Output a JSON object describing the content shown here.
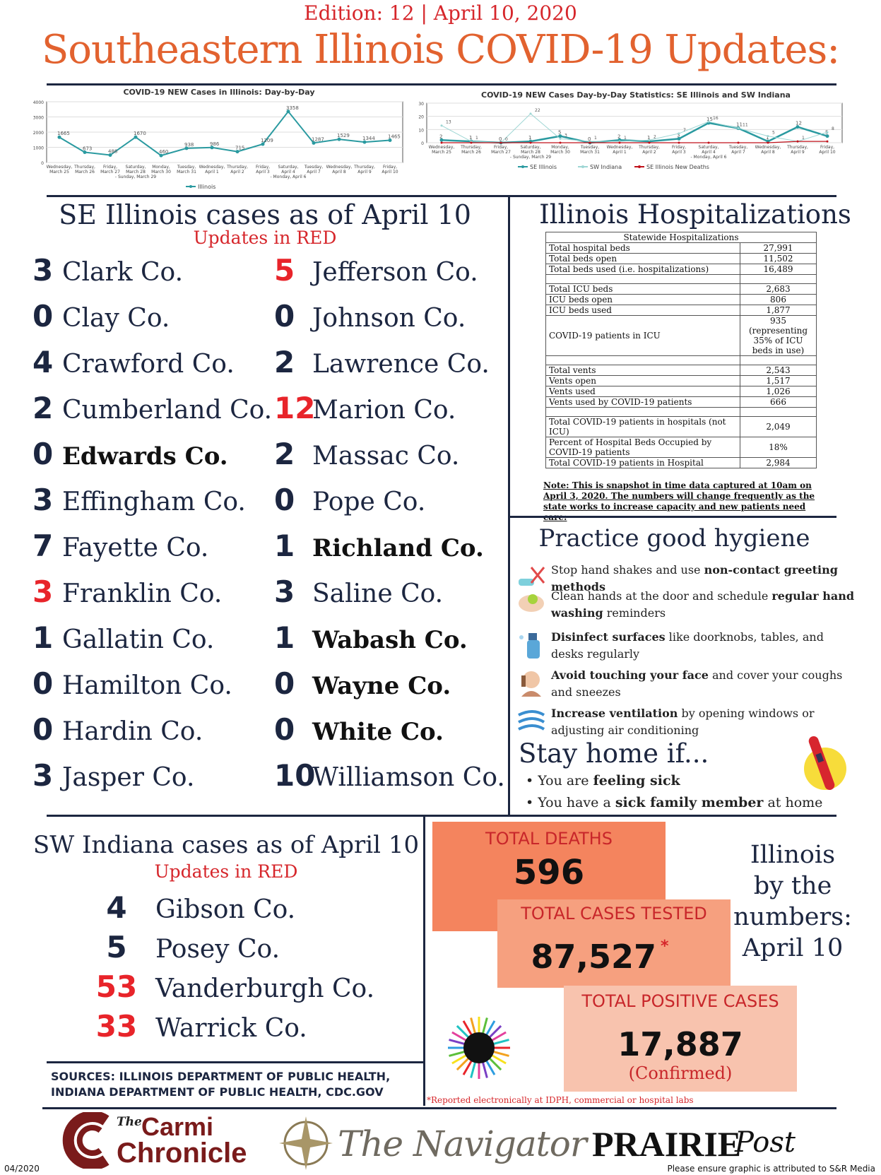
{
  "edition": "Edition: 12 | April 10, 2020",
  "title": "Southeastern Illinois COVID-19 Updates:",
  "chart_data": [
    {
      "type": "line",
      "title": "COVID-19 NEW Cases in Illinois:  Day-by-Day",
      "categories": [
        "Wednesday, March 25",
        "Thursday, March 26",
        "Friday, March 27",
        "Saturday, March 28 - Sunday, March 29",
        "Monday, March 30",
        "Tuesday, March 31",
        "Wednesday, April 1",
        "Thursday, April 2",
        "Friday, April 3",
        "Saturday, April 4 - Monday, April 6",
        "Tuesday, April 7",
        "Wednesday, April 8",
        "Thursday, April 9",
        "Friday, April 10"
      ],
      "series": [
        {
          "name": "Illinois",
          "values": [
            1665,
            673,
            488,
            1670,
            460,
            938,
            986,
            715,
            1209,
            3358,
            1287,
            1529,
            1344,
            1465
          ]
        }
      ],
      "ylim": [
        0,
        4000
      ],
      "yticks": [
        0,
        1000,
        2000,
        3000,
        4000
      ],
      "legend": "bottom"
    },
    {
      "type": "line",
      "title": "COVID-19 NEW Cases Day-by-Day Statistics: SE Illinois and SW Indiana",
      "categories": [
        "Wednesday, March 25",
        "Thursday, March 26",
        "Friday, March 27",
        "Saturday, March 28 - Sunday, March 29",
        "Monday, March 30",
        "Tuesday, March 31",
        "Wednesday, April 1",
        "Thursday, April 2",
        "Friday, April 3",
        "Saturday, April 4 - Monday, April 6",
        "Tuesday, April 7",
        "Wednesday, April 8",
        "Thursday, April 9",
        "Friday, April 10"
      ],
      "series": [
        {
          "name": "SE Illinois",
          "values": [
            2,
            1,
            0,
            1,
            5,
            0,
            2,
            1,
            3,
            15,
            11,
            1,
            12,
            5
          ]
        },
        {
          "name": "SW Indiana",
          "values": [
            13,
            1,
            0,
            22,
            3,
            1,
            1,
            2,
            7,
            16,
            11,
            5,
            1,
            8
          ]
        },
        {
          "name": "SE Illinois New Deaths",
          "values": [
            0,
            0,
            0,
            0,
            0,
            0,
            0,
            0,
            0,
            0,
            0,
            0,
            1,
            1
          ]
        }
      ],
      "ylim": [
        0,
        30
      ],
      "yticks": [
        0,
        10,
        20,
        30
      ],
      "legend": "bottom"
    }
  ],
  "se": {
    "title": "SE Illinois cases as of April 10",
    "updates": "Updates in RED",
    "left": [
      {
        "n": "3",
        "name": "Clark Co.",
        "red": false,
        "bold": false
      },
      {
        "n": "0",
        "name": "Clay Co.",
        "red": false,
        "bold": false
      },
      {
        "n": "4",
        "name": "Crawford Co.",
        "red": false,
        "bold": false
      },
      {
        "n": "2",
        "name": "Cumberland Co.",
        "red": false,
        "bold": false
      },
      {
        "n": "0",
        "name": "Edwards Co.",
        "red": false,
        "bold": true
      },
      {
        "n": "3",
        "name": "Effingham Co.",
        "red": false,
        "bold": false
      },
      {
        "n": "7",
        "name": "Fayette Co.",
        "red": false,
        "bold": false
      },
      {
        "n": "3",
        "name": "Franklin Co.",
        "red": true,
        "bold": false
      },
      {
        "n": "1",
        "name": "Gallatin Co.",
        "red": false,
        "bold": false
      },
      {
        "n": "0",
        "name": "Hamilton Co.",
        "red": false,
        "bold": false
      },
      {
        "n": "0",
        "name": "Hardin Co.",
        "red": false,
        "bold": false
      },
      {
        "n": "3",
        "name": "Jasper Co.",
        "red": false,
        "bold": false
      }
    ],
    "right": [
      {
        "n": "5",
        "name": "Jefferson Co.",
        "red": true,
        "bold": false
      },
      {
        "n": "0",
        "name": "Johnson Co.",
        "red": false,
        "bold": false
      },
      {
        "n": "2",
        "name": "Lawrence Co.",
        "red": false,
        "bold": false
      },
      {
        "n": "12",
        "name": "Marion Co.",
        "red": true,
        "bold": false
      },
      {
        "n": "2",
        "name": "Massac Co.",
        "red": false,
        "bold": false
      },
      {
        "n": "0",
        "name": "Pope Co.",
        "red": false,
        "bold": false
      },
      {
        "n": "1",
        "name": "Richland Co.",
        "red": false,
        "bold": true
      },
      {
        "n": "3",
        "name": "Saline Co.",
        "red": false,
        "bold": false
      },
      {
        "n": "1",
        "name": "Wabash Co.",
        "red": false,
        "bold": true
      },
      {
        "n": "0",
        "name": "Wayne Co.",
        "red": false,
        "bold": true
      },
      {
        "n": "0",
        "name": "White Co.",
        "red": false,
        "bold": true
      },
      {
        "n": "10",
        "name": "Williamson Co.",
        "red": false,
        "bold": false
      }
    ]
  },
  "hosp": {
    "title": "Illinois Hospitalizations",
    "table_header": "Statewide Hospitalizations",
    "rows": [
      [
        "Total hospital beds",
        "27,991"
      ],
      [
        "Total beds open",
        "11,502"
      ],
      [
        "Total beds used (i.e. hospitalizations)",
        "16,489"
      ],
      [
        "",
        ""
      ],
      [
        "Total ICU beds",
        "2,683"
      ],
      [
        "ICU beds open",
        "806"
      ],
      [
        "ICU beds used",
        "1,877"
      ],
      [
        "COVID-19 patients in ICU",
        "935 (representing 35% of ICU beds in use)"
      ],
      [
        "",
        ""
      ],
      [
        "Total vents",
        "2,543"
      ],
      [
        "Vents open",
        "1,517"
      ],
      [
        "Vents used",
        "1,026"
      ],
      [
        "Vents used by COVID-19 patients",
        "666"
      ],
      [
        "",
        ""
      ],
      [
        "Total COVID-19 patients in hospitals (not ICU)",
        "2,049"
      ],
      [
        "Percent of Hospital Beds Occupied by COVID-19 patients",
        "18%"
      ],
      [
        "Total COVID-19 patients in Hospital",
        "2,984"
      ]
    ],
    "note": "Note: This is snapshot in time data captured at 10am on April 3, 2020. The numbers will change frequently as the state works to increase capacity and new patients need care:"
  },
  "hygiene": {
    "title": "Practice good hygiene",
    "items": [
      {
        "pre": "Stop hand shakes and use ",
        "b": "non-contact greeting methods",
        "post": "",
        "icon": "no-handshake-icon"
      },
      {
        "pre": "Clean hands at the door and schedule ",
        "b": "regular hand washing",
        "post": " reminders",
        "icon": "hand-washing-icon"
      },
      {
        "pre": "",
        "b": "Disinfect surfaces",
        "post": " like doorknobs, tables, and desks regularly",
        "icon": "spray-bottle-icon"
      },
      {
        "pre": "",
        "b": "Avoid touching your face",
        "post": " and cover your coughs and sneezes",
        "icon": "face-touch-icon"
      },
      {
        "pre": "",
        "b": "Increase ventilation",
        "post": " by opening windows or adjusting air conditioning",
        "icon": "wind-icon"
      }
    ],
    "stay_title": "Stay home if...",
    "stay": [
      {
        "pre": "You are ",
        "b": "feeling sick",
        "post": ""
      },
      {
        "pre": "You have a ",
        "b": "sick family member",
        "post": " at home"
      }
    ]
  },
  "sw": {
    "title": "SW Indiana cases as of April 10",
    "updates": "Updates in RED",
    "rows": [
      {
        "n": "4",
        "name": "Gibson Co.",
        "red": false
      },
      {
        "n": "5",
        "name": "Posey Co.",
        "red": false
      },
      {
        "n": "53",
        "name": "Vanderburgh Co.",
        "red": true
      },
      {
        "n": "33",
        "name": "Warrick Co.",
        "red": true
      }
    ]
  },
  "sources": "SOURCES: ILLINOIS DEPARTMENT OF PUBLIC HEALTH, INDIANA DEPARTMENT OF PUBLIC HEALTH, CDC.GOV",
  "totals": {
    "deaths_label": "TOTAL DEATHS",
    "deaths": "596",
    "tested_label": "TOTAL CASES TESTED",
    "tested": "87,527",
    "asterisk": "*",
    "positive_label": "TOTAL POSITIVE CASES",
    "positive": "17,887",
    "confirmed": "(Confirmed)",
    "side": [
      "Illinois",
      "by the",
      "numbers:",
      "April 10"
    ],
    "footnote": "*Reported electronically at IDPH, commercial or hospital labs",
    "colors": {
      "deaths": "#f4845e",
      "tested": "#f6a07f",
      "positive": "#f8c3ae"
    }
  },
  "logos": {
    "carmi_the": "The",
    "carmi_1": "Carmi",
    "carmi_2": "Chronicle",
    "navigator": "The Navigator",
    "prairie": "PRAIRIE",
    "post": "Post"
  },
  "footer": {
    "date": "04/2020",
    "attrib": "Please ensure graphic is attributed to S&R Media"
  }
}
